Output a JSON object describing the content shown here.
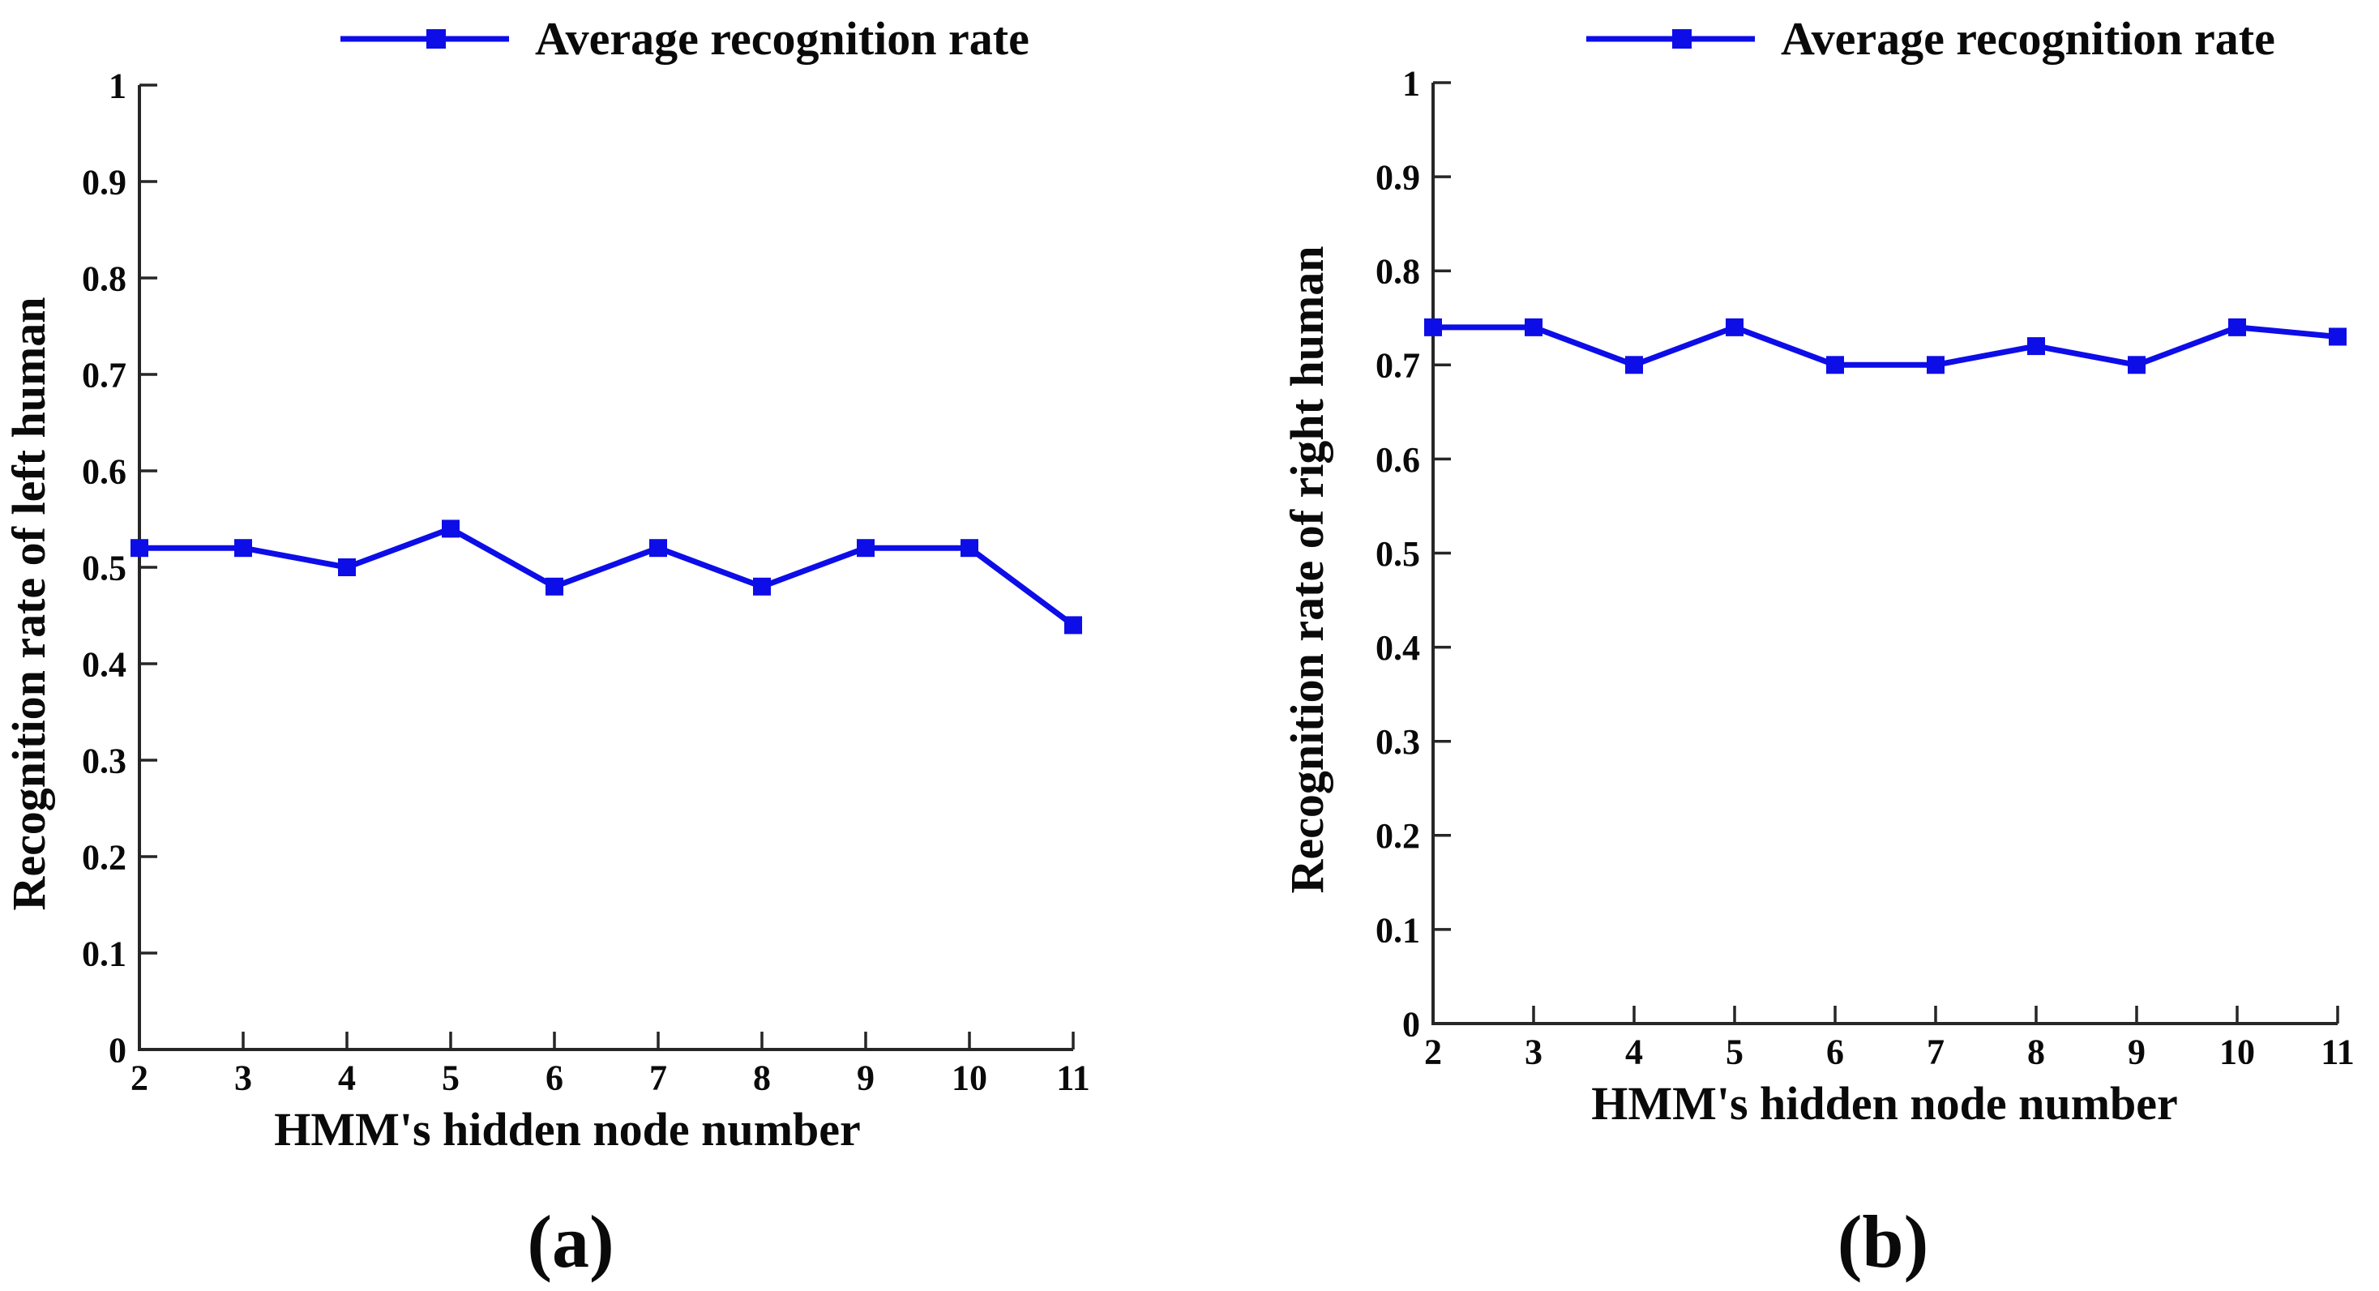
{
  "figure": {
    "background": "#ffffff",
    "axis_color": "#262626",
    "text_color": "#0a0a0a",
    "accent_blue": "#0d0de8"
  },
  "chart_data": [
    {
      "type": "line",
      "panel": "(a)",
      "legend": "Average recognition rate",
      "xlabel": "HMM's hidden node number",
      "ylabel": "Recognition rate of left human",
      "x": [
        2,
        3,
        4,
        5,
        6,
        7,
        8,
        9,
        10,
        11
      ],
      "values": [
        0.52,
        0.52,
        0.5,
        0.54,
        0.48,
        0.52,
        0.48,
        0.52,
        0.52,
        0.44
      ],
      "xlim": [
        2,
        11
      ],
      "ylim": [
        0,
        1
      ],
      "x_tick_labels": [
        "2",
        "3",
        "4",
        "5",
        "6",
        "7",
        "8",
        "9",
        "10",
        "11"
      ],
      "y_tick_labels": [
        "0",
        "0.1",
        "0.2",
        "0.3",
        "0.4",
        "0.5",
        "0.6",
        "0.7",
        "0.8",
        "0.9",
        "1"
      ],
      "line_color": "#0d0de8",
      "marker": "filled-square",
      "grid": false,
      "legend_position": "top-center"
    },
    {
      "type": "line",
      "panel": "(b)",
      "legend": "Average recognition rate",
      "xlabel": "HMM's hidden node number",
      "ylabel": "Recognition rate of right human",
      "x": [
        2,
        3,
        4,
        5,
        6,
        7,
        8,
        9,
        10,
        11
      ],
      "values": [
        0.74,
        0.74,
        0.7,
        0.74,
        0.7,
        0.7,
        0.72,
        0.7,
        0.74,
        0.73
      ],
      "xlim": [
        2,
        11
      ],
      "ylim": [
        0,
        1
      ],
      "x_tick_labels": [
        "2",
        "3",
        "4",
        "5",
        "6",
        "7",
        "8",
        "9",
        "10",
        "11"
      ],
      "y_tick_labels": [
        "0",
        "0.1",
        "0.2",
        "0.3",
        "0.4",
        "0.5",
        "0.6",
        "0.7",
        "0.8",
        "0.9",
        "1"
      ],
      "line_color": "#0d0de8",
      "marker": "filled-square",
      "grid": false,
      "legend_position": "top-center"
    }
  ]
}
